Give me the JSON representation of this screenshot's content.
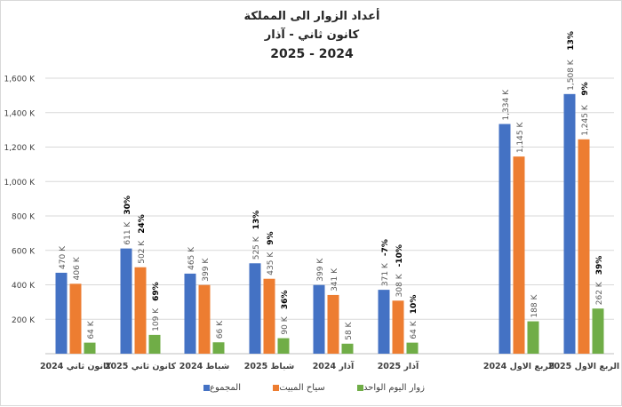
{
  "title": {
    "line1": "أعداد الزوار الى المملكة",
    "line2": "كانون ثاني - آذار",
    "line3": "2025 - 2024"
  },
  "colors": {
    "total": "#4472c4",
    "overnight": "#ed7d31",
    "same_day": "#70ad47"
  },
  "chart_data": {
    "type": "bar",
    "categories": [
      "كانون ثاني 2024",
      "كانون ثاني 2025",
      "شباط 2024",
      "شباط 2025",
      "آذار 2024",
      "آذار 2025",
      "الربع الاول 2024",
      "الربع الاول 2025"
    ],
    "series": [
      {
        "name": "المجموع",
        "values": [
          470,
          611,
          465,
          525,
          399,
          371,
          1334,
          1508
        ],
        "labels": [
          "470 K",
          "611 K",
          "465 K",
          "525 K",
          "399 K",
          "371 K",
          "1,334 K",
          "1,508 K"
        ]
      },
      {
        "name": "سياح المبيت",
        "values": [
          406,
          502,
          399,
          435,
          341,
          308,
          1145,
          1245
        ],
        "labels": [
          "406 K",
          "502 K",
          "399 K",
          "435 K",
          "341 K",
          "308 K",
          "1,145 K",
          "1,245 K"
        ]
      },
      {
        "name": "زوار اليوم الواحد",
        "values": [
          64,
          109,
          66,
          90,
          58,
          64,
          188,
          262
        ],
        "labels": [
          "64 K",
          "109 K",
          "66 K",
          "90 K",
          "58 K",
          "64 K",
          "188 K",
          "262 K"
        ]
      }
    ],
    "growth_labels": [
      {
        "category": 1,
        "series": 0,
        "text": "30%"
      },
      {
        "category": 1,
        "series": 1,
        "text": "24%"
      },
      {
        "category": 1,
        "series": 2,
        "text": "69%"
      },
      {
        "category": 3,
        "series": 0,
        "text": "13%"
      },
      {
        "category": 3,
        "series": 1,
        "text": "9%"
      },
      {
        "category": 3,
        "series": 2,
        "text": "36%"
      },
      {
        "category": 5,
        "series": 0,
        "text": "-7%"
      },
      {
        "category": 5,
        "series": 1,
        "text": "-10%"
      },
      {
        "category": 5,
        "series": 2,
        "text": "10%"
      },
      {
        "category": 7,
        "series": 0,
        "text": "13%"
      },
      {
        "category": 7,
        "series": 1,
        "text": "9%"
      },
      {
        "category": 7,
        "series": 2,
        "text": "39%"
      }
    ],
    "ylim": [
      0,
      1600
    ],
    "yticks": [
      0,
      200,
      400,
      600,
      800,
      1000,
      1200,
      1400,
      1600
    ],
    "ytick_labels": [
      "",
      "200 K",
      "400 K",
      "600 K",
      "800 K",
      "1,000 K",
      "1,200 K",
      "1,400 K",
      "1,600 K"
    ],
    "grid": true,
    "legend_position": "bottom"
  }
}
